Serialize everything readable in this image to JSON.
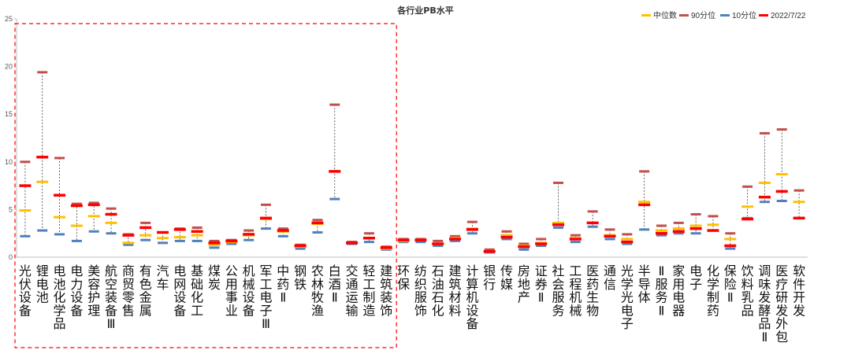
{
  "chart_data": {
    "type": "range",
    "title": "各行业PB水平",
    "ylim": [
      0,
      25
    ],
    "yticks": [
      0,
      5,
      10,
      15,
      20,
      25
    ],
    "legend": {
      "position": "top-right",
      "items": [
        {
          "key": "median",
          "label": "中位数",
          "color": "#FFC000"
        },
        {
          "key": "p90",
          "label": "90分位",
          "color": "#C0504D"
        },
        {
          "key": "p10",
          "label": "10分位",
          "color": "#4F81BD"
        },
        {
          "key": "current",
          "label": "2022/7/22",
          "color": "#FF0000"
        }
      ]
    },
    "highlight_box": {
      "first_category": "光伏设备",
      "last_category": "建筑装饰",
      "style": "dashed",
      "color": "#FF0000"
    },
    "categories": [
      "光伏设备",
      "锂电池",
      "电池化学品",
      "电力设备",
      "美容护理",
      "航空装备Ⅲ",
      "商贸零售",
      "有色金属",
      "汽车",
      "电网设备",
      "基础化工",
      "煤炭",
      "公用事业",
      "机械设备",
      "军工电子Ⅲ",
      "中药Ⅱ",
      "钢铁",
      "农林牧渔",
      "白酒Ⅱ",
      "交通运输",
      "轻工制造",
      "建筑装饰",
      "环保",
      "纺织服饰",
      "石油石化",
      "建筑材料",
      "计算机设备",
      "银行",
      "传媒",
      "房地产",
      "证券Ⅱ",
      "社会服务",
      "工程机械",
      "医药生物",
      "通信",
      "光学光电子",
      "半导体",
      "Ⅱ服务Ⅱ",
      "家用电器",
      "电子",
      "化学制药",
      "保险Ⅱ",
      "饮料乳品",
      "调味发酵品Ⅱ",
      "医疗研发外包",
      "软件开发"
    ],
    "series": [
      {
        "name": "90分位",
        "values": [
          10.0,
          19.4,
          10.4,
          5.6,
          5.7,
          5.1,
          2.4,
          3.6,
          2.6,
          3.0,
          3.1,
          1.7,
          1.8,
          2.8,
          5.5,
          3.0,
          1.3,
          3.9,
          16.0,
          1.6,
          2.5,
          1.1,
          1.9,
          1.9,
          1.7,
          2.2,
          3.7,
          0.8,
          2.7,
          1.4,
          1.9,
          7.8,
          2.3,
          4.8,
          2.9,
          2.4,
          9.0,
          3.3,
          3.6,
          4.5,
          4.3,
          2.5,
          7.4,
          13.0,
          13.4,
          7.0
        ]
      },
      {
        "name": "2022/7/22",
        "values": [
          7.5,
          10.5,
          6.5,
          5.4,
          5.5,
          4.5,
          2.3,
          3.1,
          2.6,
          2.9,
          2.7,
          1.5,
          1.7,
          2.4,
          4.1,
          2.8,
          1.2,
          3.6,
          9.0,
          1.5,
          2.0,
          1.0,
          1.8,
          1.8,
          1.4,
          1.9,
          2.9,
          0.6,
          2.1,
          1.1,
          1.4,
          3.4,
          1.9,
          3.6,
          2.2,
          1.6,
          5.5,
          2.5,
          2.7,
          3.0,
          2.8,
          1.2,
          4.0,
          6.3,
          6.9,
          4.1
        ]
      },
      {
        "name": "中位数",
        "values": [
          4.9,
          7.9,
          4.2,
          3.3,
          4.3,
          3.6,
          1.5,
          2.3,
          2.0,
          2.1,
          2.3,
          1.3,
          1.6,
          2.3,
          4.0,
          2.7,
          1.1,
          3.5,
          9.0,
          1.5,
          2.0,
          0.9,
          1.7,
          1.8,
          1.4,
          2.0,
          3.0,
          0.6,
          2.3,
          1.2,
          1.5,
          3.6,
          2.0,
          3.6,
          2.3,
          1.9,
          5.8,
          2.8,
          3.0,
          3.3,
          3.4,
          1.9,
          5.3,
          7.8,
          8.7,
          5.8
        ]
      },
      {
        "name": "10分位",
        "values": [
          2.2,
          2.8,
          2.4,
          1.7,
          2.7,
          2.5,
          1.3,
          1.8,
          1.5,
          1.7,
          1.7,
          1.0,
          1.4,
          1.8,
          3.0,
          2.2,
          0.9,
          2.6,
          6.1,
          1.4,
          1.6,
          0.8,
          1.6,
          1.6,
          1.2,
          1.7,
          2.5,
          0.5,
          1.9,
          0.8,
          1.2,
          3.1,
          1.6,
          3.2,
          1.9,
          1.4,
          2.9,
          2.3,
          2.5,
          2.5,
          2.8,
          0.9,
          4.1,
          5.8,
          5.9,
          4.1
        ]
      }
    ]
  }
}
